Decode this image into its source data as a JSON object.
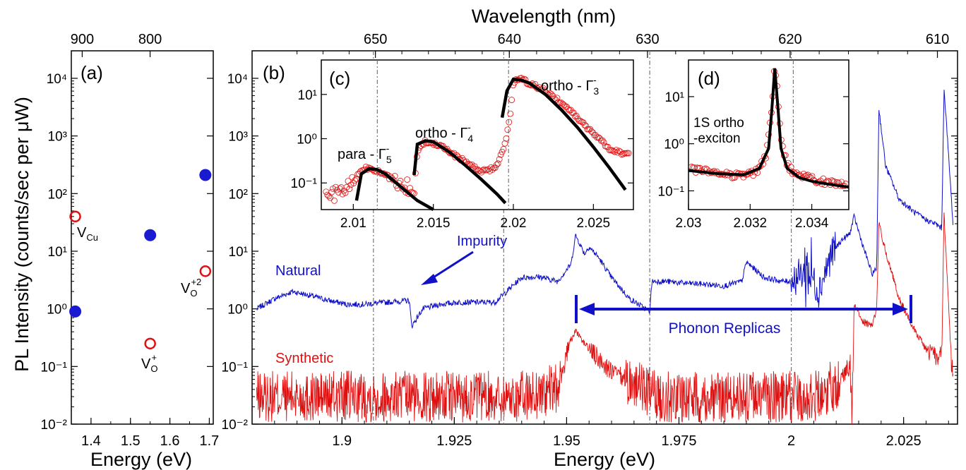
{
  "figure": {
    "ylabel": "PL Intensity (counts/sec per μW)",
    "top_axis_label": "Wavelength (nm)"
  },
  "panel_a": {
    "label": "(a)",
    "xlabel": "Energy (eV)",
    "x_ticks": [
      "1.4",
      "1.5",
      "1.6",
      "1.7"
    ],
    "top_ticks": [
      "900",
      "800"
    ],
    "y_ticks": [
      "10⁴",
      "10³",
      "10²",
      "10¹",
      "10⁰",
      "10⁻¹",
      "10⁻²"
    ]
  },
  "panel_b": {
    "label": "(b)",
    "xlabel": "Energy (eV)",
    "x_ticks": [
      "1.9",
      "1.925",
      "1.95",
      "1.975",
      "2",
      "2.025"
    ],
    "top_ticks": [
      "610",
      "620",
      "630",
      "640",
      "650"
    ],
    "y_ticks": [
      "10⁴",
      "10³",
      "10²",
      "10¹",
      "10⁰",
      "10⁻¹",
      "10⁻²"
    ],
    "annotations": {
      "natural": "Natural",
      "synthetic": "Synthetic",
      "impurity": "Impurity",
      "phonon": "Phonon Replicas"
    }
  },
  "panel_c": {
    "label": "(c)",
    "x_ticks": [
      "2.01",
      "2.015",
      "2.02",
      "2.025"
    ],
    "y_ticks": [
      "10¹",
      "10⁰",
      "10⁻¹"
    ],
    "peak_labels": {
      "para": "para - Γ",
      "para_sup": "-",
      "para_sub": "5",
      "ortho4": "ortho - Γ",
      "ortho4_sup": "-",
      "ortho4_sub": "4",
      "ortho3": "ortho - Γ",
      "ortho3_sup": "-",
      "ortho3_sub": "3"
    }
  },
  "panel_d": {
    "label": "(d)",
    "x_ticks": [
      "2.03",
      "2.032",
      "2.034"
    ],
    "y_ticks": [
      "10¹",
      "10⁰",
      "10⁻¹"
    ],
    "annotation_line1": "1S ortho",
    "annotation_line2": "-exciton"
  },
  "colors": {
    "natural": "#1010c8",
    "synthetic": "#e01010",
    "fit": "#000000",
    "data_marker": "#e01010"
  },
  "chart_data": [
    {
      "type": "scatter",
      "panel": "(a)",
      "xlabel": "Energy (eV)",
      "ylabel": "PL Intensity (counts/sec per μW)",
      "xlim": [
        1.35,
        1.71
      ],
      "ylim": [
        0.01,
        30000
      ],
      "yscale": "log",
      "series": [
        {
          "name": "Natural",
          "marker": "filled",
          "x": [
            1.36,
            1.55,
            1.69
          ],
          "y": [
            0.9,
            19,
            210
          ]
        },
        {
          "name": "Synthetic",
          "marker": "open",
          "x": [
            1.36,
            1.55,
            1.69
          ],
          "y": [
            40,
            0.25,
            4.5
          ]
        }
      ],
      "point_labels": [
        {
          "text": "V",
          "sub": "Cu",
          "sup": "",
          "x": 1.36,
          "y": 40
        },
        {
          "text": "V",
          "sub": "O",
          "sup": "+",
          "x": 1.55,
          "y": 0.25
        },
        {
          "text": "V",
          "sub": "O",
          "sup": "+2",
          "x": 1.69,
          "y": 4.5
        }
      ]
    },
    {
      "type": "line",
      "panel": "(b)",
      "xlabel": "Energy (eV)",
      "ylabel": "PL Intensity (counts/sec per μW)",
      "xlim": [
        1.88,
        2.037
      ],
      "ylim": [
        0.01,
        30000
      ],
      "yscale": "log",
      "dashed_lines_x": [
        1.907,
        1.936,
        1.9685,
        2.0
      ],
      "series": [
        {
          "name": "Natural",
          "x": [
            1.881,
            1.885,
            1.889,
            1.893,
            1.897,
            1.901,
            1.905,
            1.91,
            1.915,
            1.9155,
            1.918,
            1.922,
            1.926,
            1.93,
            1.934,
            1.936,
            1.94,
            1.944,
            1.948,
            1.951,
            1.952,
            1.954,
            1.955,
            1.957,
            1.96,
            1.964,
            1.9685,
            1.969,
            1.972,
            1.976,
            1.98,
            1.985,
            1.989,
            1.99,
            1.994,
            1.998,
            2.0,
            2.004,
            2.006,
            2.009,
            2.011,
            2.013,
            2.014,
            2.016,
            2.018,
            2.019,
            2.0195,
            2.021,
            2.024,
            2.027,
            2.03,
            2.032,
            2.0335,
            2.034,
            2.036
          ],
          "y": [
            1.0,
            1.5,
            2.0,
            1.7,
            1.4,
            1.2,
            1.2,
            1.3,
            1.4,
            0.5,
            1.0,
            1.2,
            1.3,
            1.3,
            1.3,
            1.8,
            3.5,
            3.6,
            3.0,
            6.0,
            19.0,
            9.0,
            12.0,
            8.0,
            3.5,
            1.5,
            0.9,
            3.0,
            3.0,
            2.8,
            2.7,
            2.5,
            3.0,
            6.5,
            3.5,
            3.0,
            3.0,
            5.0,
            2.0,
            9.0,
            15.0,
            20.0,
            40.0,
            12.0,
            4.0,
            5.0,
            3000.0,
            300.0,
            80.0,
            50.0,
            35.0,
            30.0,
            25.0,
            7000.0,
            30.0
          ]
        },
        {
          "name": "Synthetic",
          "x": [
            1.881,
            1.9,
            1.92,
            1.94,
            1.948,
            1.951,
            1.952,
            1.955,
            1.96,
            1.965,
            1.97,
            1.98,
            1.99,
            2.0,
            2.005,
            2.01,
            2.012,
            2.013,
            2.0135,
            2.014,
            2.016,
            2.018,
            2.019,
            2.0195,
            2.021,
            2.024,
            2.027,
            2.03,
            2.032,
            2.0335,
            2.034,
            2.036
          ],
          "y": [
            0.03,
            0.03,
            0.03,
            0.03,
            0.04,
            0.3,
            0.4,
            0.2,
            0.08,
            0.05,
            0.03,
            0.03,
            0.03,
            0.03,
            0.03,
            0.05,
            0.08,
            0.1,
            0.01,
            1.2,
            0.6,
            0.5,
            1.0,
            30.0,
            10.0,
            1.5,
            0.5,
            0.2,
            0.15,
            0.15,
            45.0,
            0.03
          ]
        }
      ],
      "annotations": [
        {
          "text": "Natural"
        },
        {
          "text": "Synthetic"
        },
        {
          "text": "Impurity",
          "arrow_to": [
            1.9155,
            1.4
          ]
        },
        {
          "text": "Phonon Replicas",
          "range_x": [
            1.952,
            2.026
          ]
        }
      ]
    },
    {
      "type": "scatter",
      "panel": "(c)",
      "inset": true,
      "xlim": [
        2.008,
        2.0275
      ],
      "ylim": [
        0.025,
        60
      ],
      "yscale": "log",
      "series": [
        {
          "name": "data",
          "marker": "open",
          "x": [
            2.0085,
            2.009,
            2.0095,
            2.01,
            2.0105,
            2.011,
            2.012,
            2.013,
            2.0138,
            2.014,
            2.0145,
            2.015,
            2.0155,
            2.016,
            2.017,
            2.018,
            2.0185,
            2.019,
            2.0195,
            2.0198,
            2.02,
            2.0205,
            2.021,
            2.022,
            2.023,
            2.024,
            2.025,
            2.026,
            2.027
          ],
          "y": [
            0.05,
            0.06,
            0.07,
            0.1,
            0.2,
            0.22,
            0.15,
            0.09,
            0.07,
            0.5,
            0.9,
            0.8,
            0.7,
            0.5,
            0.3,
            0.18,
            0.2,
            0.25,
            0.8,
            3.0,
            20.0,
            22.0,
            18.0,
            12.0,
            6.5,
            3.0,
            1.3,
            0.6,
            0.45
          ]
        },
        {
          "name": "fit",
          "x": [
            2.0102,
            2.0105,
            2.011,
            2.0115,
            2.012,
            2.013,
            2.014,
            2.015,
            2.0138,
            2.014,
            2.0145,
            2.015,
            2.016,
            2.017,
            2.018,
            2.019,
            2.0195,
            2.0193,
            2.0196,
            2.02,
            2.0205,
            2.021,
            2.022,
            2.023,
            2.024,
            2.025,
            2.026,
            2.027
          ],
          "y": [
            0.04,
            0.16,
            0.21,
            0.2,
            0.16,
            0.08,
            0.04,
            0.022,
            0.15,
            0.75,
            0.9,
            0.85,
            0.5,
            0.25,
            0.12,
            0.055,
            0.035,
            3.0,
            12.0,
            22.0,
            21.0,
            18.0,
            10.0,
            4.5,
            1.8,
            0.65,
            0.22,
            0.07
          ]
        }
      ],
      "peak_labels": [
        "para - Γ5-",
        "ortho - Γ4-",
        "ortho - Γ3-"
      ]
    },
    {
      "type": "scatter",
      "panel": "(d)",
      "inset": true,
      "xlim": [
        2.03,
        2.0352
      ],
      "ylim": [
        0.04,
        60
      ],
      "yscale": "log",
      "series": [
        {
          "name": "data",
          "marker": "open",
          "x": [
            2.0302,
            2.0306,
            2.031,
            2.0314,
            2.0318,
            2.0322,
            2.0325,
            2.0327,
            2.0328,
            2.0329,
            2.033,
            2.0332,
            2.0335,
            2.034,
            2.0345,
            2.035
          ],
          "y": [
            0.28,
            0.26,
            0.24,
            0.22,
            0.21,
            0.25,
            0.5,
            5.0,
            45.0,
            10.0,
            1.2,
            0.35,
            0.22,
            0.18,
            0.15,
            0.14
          ]
        },
        {
          "name": "fit",
          "x": [
            2.03,
            2.031,
            2.0318,
            2.0323,
            2.0326,
            2.0327,
            2.0328,
            2.0329,
            2.033,
            2.0332,
            2.0336,
            2.034,
            2.0345,
            2.0352
          ],
          "y": [
            0.27,
            0.23,
            0.22,
            0.3,
            0.8,
            5.0,
            40.0,
            6.0,
            0.8,
            0.3,
            0.19,
            0.16,
            0.14,
            0.12
          ]
        }
      ],
      "annotation": "1S ortho -exciton"
    }
  ]
}
